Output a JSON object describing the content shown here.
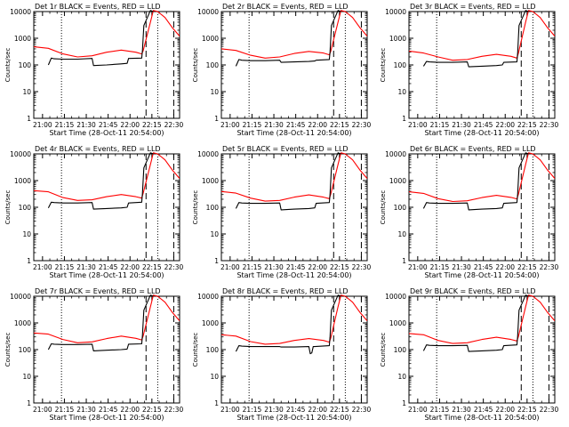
{
  "chart_data": {
    "type": "line",
    "panel_count": 9,
    "y_scale": "log",
    "ylim": [
      1,
      10000
    ],
    "y_ticks": [
      1,
      10,
      100,
      1000,
      10000
    ],
    "y_tick_labels": [
      "1",
      "10",
      "100",
      "1000",
      "10000"
    ],
    "ylabel": "Counts/sec",
    "xlabel": "Start Time (28-Oct-11 20:54:00)",
    "x_unit": "minutes since 20:54:00",
    "xlim": [
      0,
      100
    ],
    "x_ticks": [
      6,
      21,
      36,
      51,
      66,
      81,
      96
    ],
    "x_tick_labels": [
      "21:00",
      "21:15",
      "21:30",
      "21:45",
      "22:00",
      "22:15",
      "22:30"
    ],
    "series_colors": {
      "events": "#000000",
      "lld": "#ff0000"
    },
    "markers": [
      {
        "x": 19,
        "style": "dotted"
      },
      {
        "x": 77,
        "style": "dashed"
      },
      {
        "x": 85,
        "style": "dotted"
      },
      {
        "x": 96,
        "style": "dashed"
      }
    ],
    "panels": [
      {
        "title": "Det 1r BLACK = Events, RED = LLD",
        "lld": {
          "x": [
            0,
            10,
            20,
            30,
            40,
            50,
            60,
            70,
            74,
            75,
            80,
            82,
            85,
            90,
            95,
            100
          ],
          "y": [
            480,
            420,
            260,
            200,
            220,
            300,
            360,
            300,
            260,
            340,
            4000,
            11000,
            10000,
            6000,
            2500,
            1200
          ]
        },
        "events": {
          "x": [
            10,
            12,
            14,
            20,
            30,
            40,
            41,
            50,
            60,
            64,
            65,
            74,
            74.5,
            75.5,
            80,
            82
          ],
          "y": [
            100,
            180,
            170,
            165,
            165,
            175,
            95,
            100,
            110,
            115,
            175,
            180,
            340,
            3000,
            11000,
            10000
          ]
        }
      },
      {
        "title": "Det 2r BLACK = Events, RED = LLD",
        "lld": {
          "x": [
            0,
            10,
            20,
            30,
            40,
            50,
            60,
            70,
            74,
            75,
            80,
            82,
            85,
            90,
            95,
            100
          ],
          "y": [
            400,
            350,
            230,
            180,
            200,
            270,
            320,
            280,
            240,
            320,
            4000,
            11000,
            10000,
            6000,
            2500,
            1200
          ]
        },
        "events": {
          "x": [
            10,
            12,
            14,
            20,
            30,
            40,
            41,
            50,
            60,
            64,
            65,
            74,
            74.5,
            75.5,
            80,
            82
          ],
          "y": [
            90,
            160,
            150,
            145,
            145,
            150,
            125,
            130,
            135,
            140,
            150,
            160,
            300,
            3000,
            11000,
            10000
          ]
        }
      },
      {
        "title": "Det 3r BLACK = Events, RED = LLD",
        "lld": {
          "x": [
            0,
            10,
            20,
            30,
            40,
            50,
            60,
            70,
            74,
            75,
            80,
            82,
            85,
            90,
            95,
            100
          ],
          "y": [
            330,
            280,
            200,
            150,
            160,
            210,
            250,
            210,
            180,
            270,
            4000,
            11000,
            10000,
            6000,
            2500,
            1200
          ]
        },
        "events": {
          "x": [
            10,
            12,
            14,
            20,
            30,
            40,
            41,
            50,
            60,
            64,
            65,
            74,
            74.5,
            75.5,
            80,
            82
          ],
          "y": [
            90,
            135,
            130,
            125,
            125,
            130,
            85,
            90,
            95,
            100,
            125,
            130,
            260,
            3000,
            11000,
            10000
          ]
        }
      },
      {
        "title": "Det 4r BLACK = Events, RED = LLD",
        "lld": {
          "x": [
            0,
            10,
            20,
            30,
            40,
            50,
            60,
            70,
            74,
            75,
            80,
            82,
            85,
            90,
            95,
            100
          ],
          "y": [
            420,
            380,
            230,
            180,
            190,
            250,
            300,
            250,
            220,
            330,
            4000,
            11000,
            10000,
            6000,
            2500,
            1200
          ]
        },
        "events": {
          "x": [
            10,
            12,
            14,
            20,
            30,
            40,
            41,
            50,
            60,
            64,
            65,
            74,
            74.5,
            75.5,
            80,
            82
          ],
          "y": [
            95,
            155,
            150,
            145,
            145,
            150,
            85,
            90,
            95,
            100,
            145,
            155,
            320,
            3000,
            11000,
            10000
          ]
        }
      },
      {
        "title": "Det 5r BLACK = Events, RED = LLD",
        "lld": {
          "x": [
            0,
            10,
            20,
            30,
            40,
            50,
            60,
            70,
            74,
            75,
            80,
            82,
            85,
            90,
            95,
            100
          ],
          "y": [
            390,
            340,
            220,
            170,
            180,
            240,
            290,
            240,
            210,
            310,
            4000,
            11000,
            10000,
            6000,
            2500,
            1200
          ]
        },
        "events": {
          "x": [
            10,
            12,
            14,
            20,
            30,
            40,
            41,
            50,
            60,
            64,
            65,
            74,
            74.5,
            75.5,
            80,
            82
          ],
          "y": [
            90,
            150,
            145,
            140,
            140,
            145,
            80,
            85,
            90,
            95,
            140,
            150,
            300,
            3000,
            11000,
            10000
          ]
        }
      },
      {
        "title": "Det 6r BLACK = Events, RED = LLD",
        "lld": {
          "x": [
            0,
            10,
            20,
            30,
            40,
            50,
            60,
            70,
            74,
            75,
            80,
            82,
            85,
            90,
            95,
            100
          ],
          "y": [
            380,
            330,
            210,
            165,
            175,
            230,
            280,
            235,
            205,
            300,
            4000,
            11000,
            10000,
            6000,
            2500,
            1200
          ]
        },
        "events": {
          "x": [
            10,
            12,
            14,
            20,
            30,
            40,
            41,
            50,
            60,
            64,
            65,
            74,
            74.5,
            75.5,
            80,
            82
          ],
          "y": [
            90,
            150,
            145,
            140,
            140,
            145,
            80,
            85,
            90,
            95,
            140,
            150,
            290,
            3000,
            11000,
            10000
          ]
        }
      },
      {
        "title": "Det 7r BLACK = Events, RED = LLD",
        "lld": {
          "x": [
            0,
            10,
            20,
            30,
            40,
            50,
            60,
            70,
            74,
            75,
            80,
            82,
            85,
            90,
            95,
            100
          ],
          "y": [
            420,
            380,
            240,
            180,
            195,
            260,
            320,
            265,
            230,
            320,
            4000,
            11000,
            10000,
            6000,
            2500,
            1200
          ]
        },
        "events": {
          "x": [
            10,
            12,
            14,
            20,
            30,
            40,
            41,
            50,
            60,
            64,
            65,
            74,
            74.5,
            75.5,
            80,
            82
          ],
          "y": [
            100,
            165,
            160,
            155,
            155,
            160,
            90,
            95,
            100,
            105,
            160,
            165,
            330,
            3000,
            11000,
            10000
          ]
        }
      },
      {
        "title": "Det 8r BLACK = Events, RED = LLD",
        "lld": {
          "x": [
            0,
            10,
            20,
            30,
            40,
            50,
            60,
            70,
            74,
            75,
            80,
            82,
            85,
            90,
            95,
            100
          ],
          "y": [
            360,
            320,
            200,
            160,
            170,
            220,
            260,
            220,
            190,
            270,
            4000,
            11000,
            10000,
            6000,
            2500,
            1200
          ]
        },
        "events": {
          "x": [
            10,
            12,
            14,
            20,
            30,
            40,
            41,
            50,
            60,
            61,
            62,
            63,
            64,
            74,
            74.5,
            75.5,
            80,
            82
          ],
          "y": [
            85,
            140,
            135,
            130,
            130,
            130,
            125,
            125,
            130,
            70,
            75,
            130,
            130,
            140,
            290,
            3000,
            11000,
            10000
          ]
        }
      },
      {
        "title": "Det 9r BLACK = Events, RED = LLD",
        "lld": {
          "x": [
            0,
            10,
            20,
            30,
            40,
            50,
            60,
            70,
            74,
            75,
            80,
            82,
            85,
            90,
            95,
            100
          ],
          "y": [
            400,
            360,
            220,
            170,
            180,
            240,
            290,
            240,
            210,
            300,
            4000,
            11000,
            10000,
            6000,
            2500,
            1200
          ]
        },
        "events": {
          "x": [
            10,
            12,
            14,
            20,
            30,
            40,
            41,
            50,
            60,
            64,
            65,
            74,
            74.5,
            75.5,
            80,
            82
          ],
          "y": [
            90,
            150,
            145,
            140,
            140,
            145,
            85,
            90,
            95,
            100,
            140,
            150,
            300,
            3000,
            11000,
            10000
          ]
        }
      }
    ]
  }
}
